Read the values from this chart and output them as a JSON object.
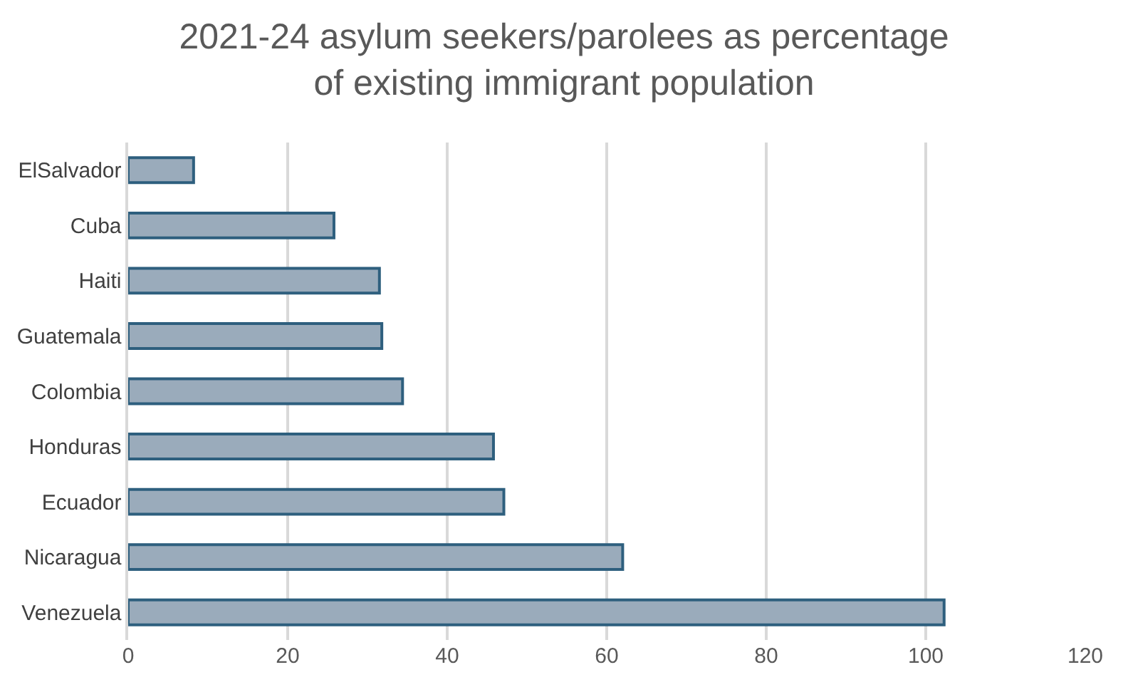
{
  "chart_data": {
    "type": "bar",
    "orientation": "horizontal",
    "title": "2021-24 asylum seekers/parolees as percentage\nof existing immigrant population",
    "categories": [
      "ElSalvador",
      "Cuba",
      "Haiti",
      "Guatemala",
      "Colombia",
      "Honduras",
      "Ecuador",
      "Nicaragua",
      "Venezuela"
    ],
    "values": [
      8.2,
      25.8,
      31.5,
      31.8,
      34.4,
      45.8,
      47.1,
      62.0,
      102.3
    ],
    "color": "#9aabbb",
    "xlim": [
      0,
      120
    ],
    "xticks": [
      0,
      20,
      40,
      60,
      80,
      100,
      120
    ],
    "grid": "x",
    "legend": false
  }
}
